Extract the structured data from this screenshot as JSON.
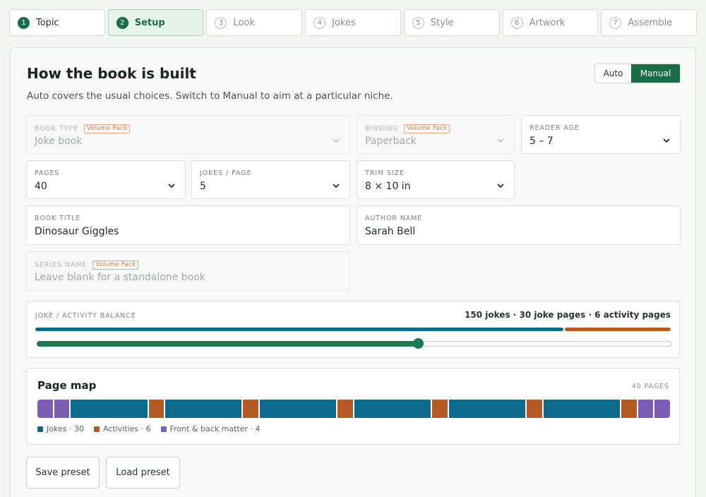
{
  "steps": [
    {
      "num": "1",
      "label": "Topic"
    },
    {
      "num": "2",
      "label": "Setup"
    },
    {
      "num": "3",
      "label": "Look"
    },
    {
      "num": "4",
      "label": "Jokes"
    },
    {
      "num": "5",
      "label": "Style"
    },
    {
      "num": "6",
      "label": "Artwork"
    },
    {
      "num": "7",
      "label": "Assemble"
    }
  ],
  "header": {
    "title": "How the book is built",
    "subtitle": "Auto covers the usual choices. Switch to Manual to aim at a particular niche.",
    "mode_auto": "Auto",
    "mode_manual": "Manual",
    "mode_selected": "Manual"
  },
  "fields": {
    "book_type": {
      "label": "Book type",
      "badge": "Volume Pack",
      "value": "Joke book"
    },
    "binding": {
      "label": "Binding",
      "badge": "Volume Pack",
      "value": "Paperback"
    },
    "reader_age": {
      "label": "Reader age",
      "value": "5 – 7"
    },
    "pages": {
      "label": "Pages",
      "value": "40"
    },
    "jokes_per_page": {
      "label": "Jokes / page",
      "value": "5"
    },
    "trim_size": {
      "label": "Trim size",
      "value": "8 × 10 in"
    },
    "book_title": {
      "label": "Book title",
      "value": "Dinosaur Giggles"
    },
    "author_name": {
      "label": "Author name",
      "value": "Sarah Bell"
    },
    "series_name": {
      "label": "Series name",
      "badge": "Volume Pack",
      "placeholder": "Leave blank for a standalone book"
    }
  },
  "balance": {
    "label": "JOKE / ACTIVITY BALANCE",
    "summary": "150 jokes · 30 joke pages · 6 activity pages",
    "slider_fraction": 0.6
  },
  "page_map": {
    "title": "Page map",
    "count_label": "40 PAGES",
    "segments": [
      {
        "kind": "front",
        "pages": 1
      },
      {
        "kind": "front",
        "pages": 1
      },
      {
        "kind": "jokes",
        "pages": 5
      },
      {
        "kind": "act",
        "pages": 1
      },
      {
        "kind": "jokes",
        "pages": 5
      },
      {
        "kind": "act",
        "pages": 1
      },
      {
        "kind": "jokes",
        "pages": 5
      },
      {
        "kind": "act",
        "pages": 1
      },
      {
        "kind": "jokes",
        "pages": 5
      },
      {
        "kind": "act",
        "pages": 1
      },
      {
        "kind": "jokes",
        "pages": 5
      },
      {
        "kind": "act",
        "pages": 1
      },
      {
        "kind": "jokes",
        "pages": 5
      },
      {
        "kind": "act",
        "pages": 1
      },
      {
        "kind": "front",
        "pages": 1
      },
      {
        "kind": "front",
        "pages": 1
      }
    ],
    "legend": [
      {
        "kind": "jokes",
        "label": "Jokes · 30"
      },
      {
        "kind": "act",
        "label": "Activities · 6"
      },
      {
        "kind": "front",
        "label": "Front & back matter · 4"
      }
    ]
  },
  "colors": {
    "accent": "#1a6b48",
    "jokes": "#0d6a8c",
    "activities": "#b45a22",
    "front": "#7a5db4"
  },
  "buttons": {
    "save_preset": "Save preset",
    "load_preset": "Load preset"
  }
}
